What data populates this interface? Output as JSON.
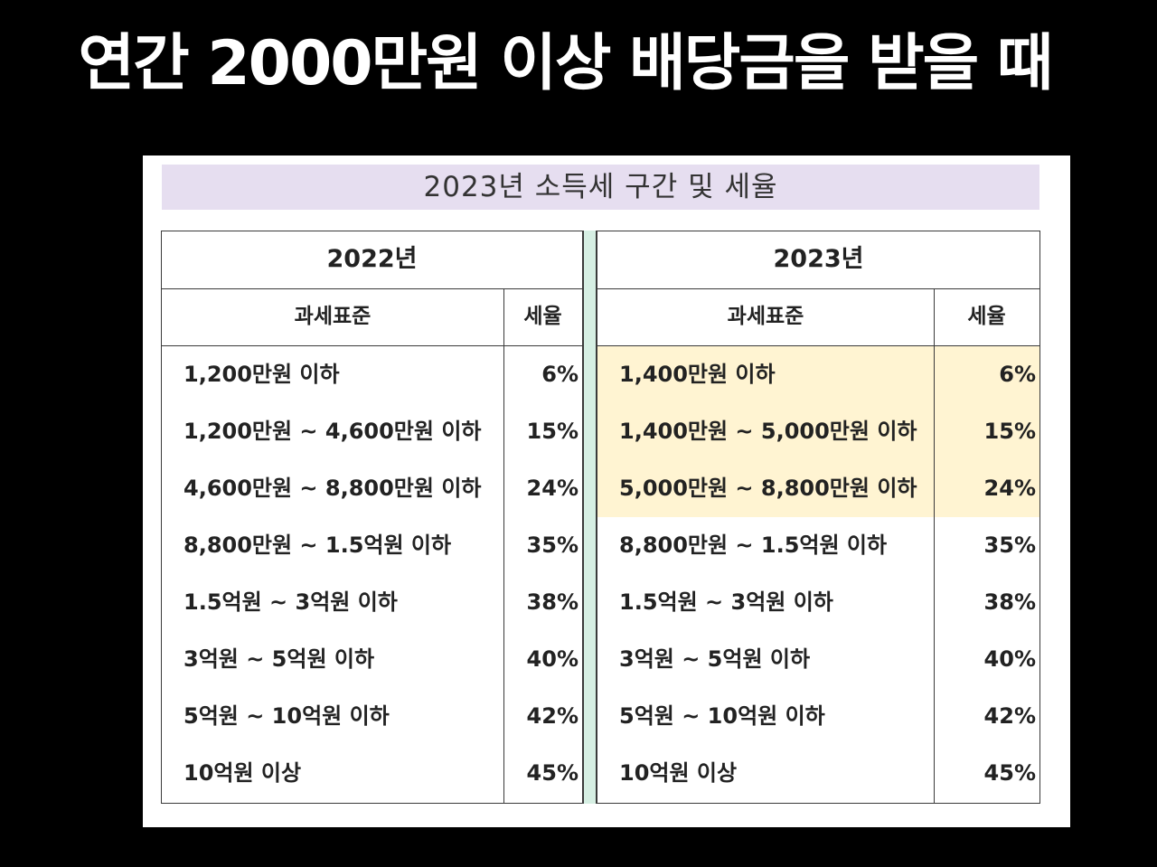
{
  "headline": "연간 2000만원 이상 배당금을 받을 때",
  "banner": "2023년 소득세 구간 및 세율",
  "tables": [
    {
      "year": "2022년",
      "col_standard": "과세표준",
      "col_rate": "세율",
      "rows": [
        {
          "range": "1,200만원 이하",
          "rate": "6%"
        },
        {
          "range": "1,200만원 ~ 4,600만원 이하",
          "rate": "15%"
        },
        {
          "range": "4,600만원 ~ 8,800만원 이하",
          "rate": "24%"
        },
        {
          "range": "8,800만원 ~ 1.5억원 이하",
          "rate": "35%"
        },
        {
          "range": "1.5억원 ~ 3억원 이하",
          "rate": "38%"
        },
        {
          "range": "3억원 ~ 5억원 이하",
          "rate": "40%"
        },
        {
          "range": "5억원 ~ 10억원 이하",
          "rate": "42%"
        },
        {
          "range": "10억원 이상",
          "rate": "45%"
        }
      ]
    },
    {
      "year": "2023년",
      "col_standard": "과세표준",
      "col_rate": "세율",
      "rows": [
        {
          "range": "1,400만원 이하",
          "rate": "6%"
        },
        {
          "range": "1,400만원 ~ 5,000만원 이하",
          "rate": "15%"
        },
        {
          "range": "5,000만원 ~ 8,800만원 이하",
          "rate": "24%"
        },
        {
          "range": "8,800만원 ~ 1.5억원 이하",
          "rate": "35%"
        },
        {
          "range": "1.5억원 ~ 3억원 이하",
          "rate": "38%"
        },
        {
          "range": "3억원 ~ 5억원 이하",
          "rate": "40%"
        },
        {
          "range": "5억원 ~ 10억원 이하",
          "rate": "42%"
        },
        {
          "range": "10억원 이상",
          "rate": "45%"
        }
      ]
    }
  ],
  "colors": {
    "background": "#000000",
    "banner": "#e6def0",
    "separator": "#d6efe3",
    "highlight": "#fff4d2"
  }
}
